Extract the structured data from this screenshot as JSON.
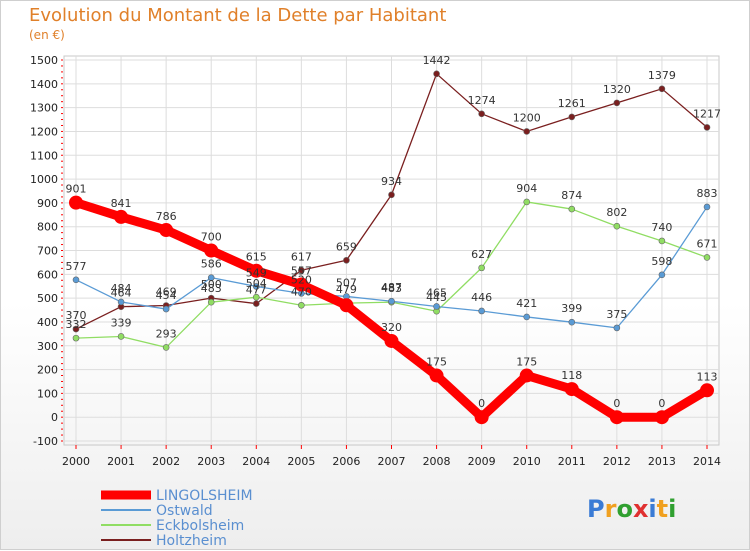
{
  "title": "Evolution du Montant de la Dette par Habitant",
  "subtitle": "(en €)",
  "logo": "Proxiti",
  "chart_data": {
    "type": "line",
    "title": "Evolution du Montant de la Dette par Habitant",
    "subtitle": "(en €)",
    "x": [
      2000,
      2001,
      2002,
      2003,
      2004,
      2005,
      2006,
      2007,
      2008,
      2009,
      2010,
      2011,
      2012,
      2013,
      2014
    ],
    "y_ticks": [
      -100,
      0,
      100,
      200,
      300,
      400,
      500,
      600,
      700,
      800,
      900,
      1000,
      1100,
      1200,
      1300,
      1400,
      1500
    ],
    "ylim": [
      -100,
      1500
    ],
    "grid": true,
    "legend_position": "bottom-left",
    "series": [
      {
        "name": "LINGOLSHEIM",
        "color": "#ff0000",
        "values": [
          901,
          841,
          786,
          700,
          615,
          557,
          470,
          320,
          175,
          0,
          175,
          118,
          0,
          0,
          113
        ]
      },
      {
        "name": "Ostwald",
        "color": "#5a9bd5",
        "values": [
          577,
          484,
          454,
          586,
          549,
          520,
          507,
          487,
          465,
          446,
          421,
          399,
          375,
          598,
          883
        ]
      },
      {
        "name": "Eckbolsheim",
        "color": "#90dd63",
        "values": [
          332,
          339,
          293,
          483,
          504,
          470,
          479,
          483,
          445,
          627,
          904,
          874,
          802,
          740,
          671
        ]
      },
      {
        "name": "Holtzheim",
        "color": "#7a1f1f",
        "values": [
          370,
          464,
          469,
          500,
          477,
          617,
          659,
          934,
          1442,
          1274,
          1200,
          1261,
          1320,
          1379,
          1217
        ]
      }
    ],
    "data_labels": [
      [
        901,
        841,
        786,
        700,
        615,
        557,
        null,
        320,
        175,
        0,
        175,
        118,
        0,
        0,
        113
      ],
      [
        577,
        484,
        454,
        586,
        549,
        520,
        507,
        487,
        465,
        446,
        421,
        399,
        375,
        598,
        883
      ],
      [
        332,
        339,
        293,
        483,
        504,
        470,
        479,
        483,
        445,
        627,
        904,
        874,
        802,
        740,
        671
      ],
      [
        370,
        464,
        469,
        500,
        477,
        617,
        659,
        934,
        1442,
        1274,
        1200,
        1261,
        1320,
        1379,
        1217
      ]
    ]
  }
}
